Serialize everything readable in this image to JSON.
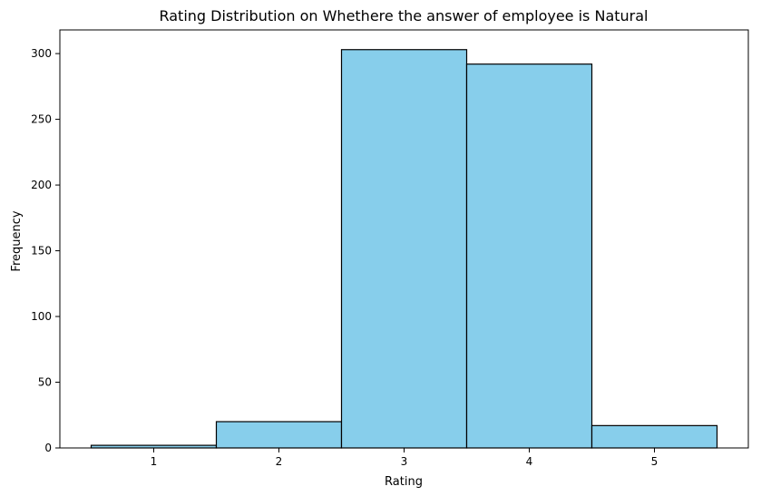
{
  "chart_data": {
    "type": "bar",
    "title": "Rating Distribution on Whethere the answer of employee is Natural",
    "xlabel": "Rating",
    "ylabel": "Frequency",
    "categories": [
      "1",
      "2",
      "3",
      "4",
      "5"
    ],
    "bins": [
      {
        "start": 0.5,
        "end": 1.5,
        "value": 2
      },
      {
        "start": 1.5,
        "end": 2.5,
        "value": 20
      },
      {
        "start": 2.5,
        "end": 3.5,
        "value": 303
      },
      {
        "start": 3.5,
        "end": 4.5,
        "value": 292
      },
      {
        "start": 4.5,
        "end": 5.5,
        "value": 17
      }
    ],
    "xticks": [
      1,
      2,
      3,
      4,
      5
    ],
    "yticks": [
      0,
      50,
      100,
      150,
      200,
      250,
      300
    ],
    "xlim": [
      0.25,
      5.75
    ],
    "ylim": [
      0,
      318
    ],
    "grid": false,
    "colors": {
      "bar_fill": "#87CEEB",
      "bar_edge": "#000000"
    }
  }
}
